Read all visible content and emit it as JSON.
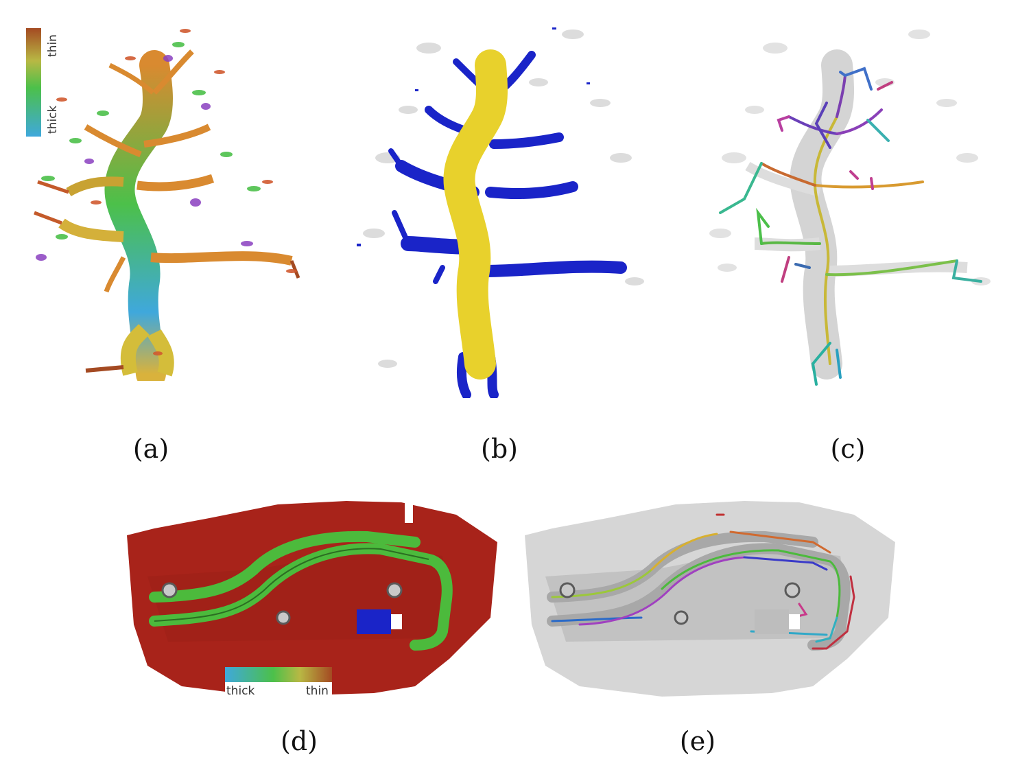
{
  "figure": {
    "panels": [
      {
        "id": "a",
        "caption": "(a)",
        "colorbar": {
          "low_label": "thick",
          "high_label": "thin"
        }
      },
      {
        "id": "b",
        "caption": "(b)"
      },
      {
        "id": "c",
        "caption": "(c)"
      },
      {
        "id": "d",
        "caption": "(d)",
        "colorbar": {
          "low_label": "thick",
          "high_label": "thin"
        }
      },
      {
        "id": "e",
        "caption": "(e)"
      }
    ],
    "colors": {
      "thick": "#3fa8dc",
      "mid": "#4cc04a",
      "thin": "#a44a22",
      "trunk_yellow": "#e8d12c",
      "branch_blue": "#1a24c8",
      "ghost_gray": "#d8d8d8",
      "plate_red": "#a8231a"
    }
  }
}
